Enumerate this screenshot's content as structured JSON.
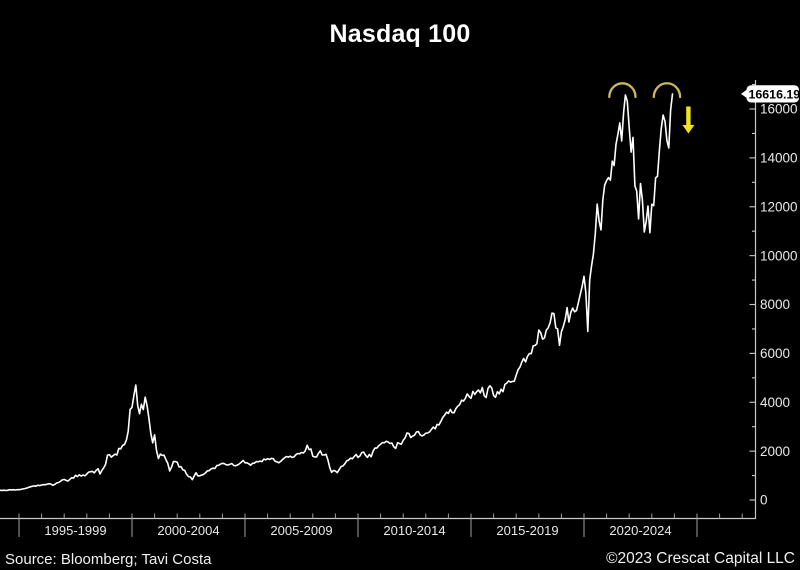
{
  "title": "Nasdaq 100",
  "footer": {
    "source": "Source: Bloomberg; Tavi Costa",
    "copyright": "©2023 Crescat Capital LLC"
  },
  "colors": {
    "background": "#000000",
    "price_line": "#ffffff",
    "axis": "#c8c8c8",
    "tick": "#9f9f9f",
    "tick_label": "#e8e8e8",
    "annotation_arc": "#c9b85e",
    "annotation_arrow": "#f2e41c",
    "tag_bg": "#ffffff",
    "tag_text": "#000000"
  },
  "chart_data": {
    "type": "line",
    "title": "Nasdaq 100",
    "xlabel": "",
    "ylabel": "",
    "legend": [],
    "grid": false,
    "axis_position": {
      "y_axis": "right",
      "x_axis": "bottom"
    },
    "x_group_labels": [
      "1995-1999",
      "2000-2004",
      "2005-2009",
      "2010-2014",
      "2015-2019",
      "2020-2024"
    ],
    "x_group_start_years": [
      1995,
      2000,
      2005,
      2010,
      2015,
      2020
    ],
    "x_axis_year_range": [
      1994.17,
      2027.5
    ],
    "yticks": [
      0,
      2000,
      4000,
      6000,
      8000,
      10000,
      12000,
      14000,
      16000
    ],
    "y_minor_tick_step": 1000,
    "ylim": [
      0,
      17200
    ],
    "last_price": "16616.19",
    "series": [
      {
        "name": "Nasdaq 100 Index",
        "start_year": 1994.1667,
        "points_per_year": 12,
        "values": [
          398,
          394,
          400,
          388,
          396,
          420,
          412,
          422,
          408,
          420,
          420,
          435,
          450,
          468,
          488,
          512,
          540,
          560,
          578,
          565,
          605,
          590,
          612,
          630,
          620,
          652,
          668,
          645,
          600,
          638,
          695,
          718,
          762,
          821,
          838,
          806,
          775,
          848,
          912,
          895,
          1010,
          958,
          1030,
          980,
          1025,
          990,
          1060,
          1142,
          1158,
          1172,
          1108,
          1215,
          1280,
          1062,
          1212,
          1320,
          1460,
          1836,
          1855,
          1752,
          1822,
          1875,
          1842,
          2110,
          2090,
          2234,
          2272,
          2452,
          2810,
          3707,
          3790,
          4280,
          4704,
          3862,
          3530,
          3915,
          3700,
          4206,
          3850,
          3320,
          2730,
          2341,
          2670,
          2034,
          1698,
          1880,
          1830,
          1832,
          1654,
          1498,
          1192,
          1352,
          1570,
          1577,
          1548,
          1352,
          1368,
          1232,
          1212,
          1052,
          958,
          942,
          832,
          982,
          1114,
          984,
          992,
          1018,
          1048,
          1112,
          1190,
          1202,
          1272,
          1302,
          1290,
          1412,
          1420,
          1468,
          1502,
          1484,
          1442,
          1432,
          1462,
          1492,
          1412,
          1402,
          1434,
          1482,
          1542,
          1621,
          1522,
          1522,
          1482,
          1422,
          1502,
          1512,
          1572,
          1562,
          1592,
          1572,
          1672,
          1645,
          1692,
          1662,
          1702,
          1692,
          1582,
          1562,
          1522,
          1582,
          1662,
          1722,
          1782,
          1757,
          1792,
          1742,
          1762,
          1852,
          1902,
          1892,
          1942,
          1922,
          2012,
          2238,
          2062,
          2085,
          1792,
          1762,
          1762,
          1912,
          2012,
          1842,
          1842,
          1872,
          1642,
          1322,
          1132,
          1212,
          1182,
          1122,
          1242,
          1372,
          1392,
          1482,
          1602,
          1632,
          1712,
          1692,
          1782,
          1860,
          1742,
          1802,
          1942,
          1962,
          1832,
          1742,
          1862,
          1772,
          2002,
          2122,
          2122,
          2218,
          2282,
          2352,
          2342,
          2402,
          2372,
          2312,
          2332,
          2172,
          2112,
          2342,
          2312,
          2278,
          2442,
          2542,
          2742,
          2722,
          2552,
          2615,
          2652,
          2782,
          2802,
          2662,
          2622,
          2660,
          2732,
          2742,
          2792,
          2892,
          2982,
          2912,
          3092,
          3072,
          3222,
          3382,
          3472,
          3592,
          3542,
          3702,
          3572,
          3572,
          3742,
          3842,
          3902,
          4082,
          4052,
          4162,
          4342,
          4236,
          4162,
          4442,
          4322,
          4432,
          4502,
          4382,
          4602,
          4272,
          4192,
          4562,
          4672,
          4593,
          4282,
          4202,
          4432,
          4342,
          4532,
          4432,
          4732,
          4782,
          4872,
          4822,
          4852,
          4863,
          5112,
          5332,
          5442,
          5652,
          5792,
          5652,
          5882,
          5992,
          5992,
          6312,
          6322,
          6396,
          6952,
          6852,
          6582,
          6632,
          6952,
          7042,
          7252,
          7642,
          7632,
          7042,
          7002,
          6330,
          6882,
          7102,
          7382,
          7872,
          7282,
          7672,
          7852,
          7702,
          7752,
          8082,
          8402,
          8733,
          9152,
          8462,
          6900,
          9002,
          9562,
          10062,
          10902,
          12110,
          11418,
          11052,
          12268,
          12888,
          13070,
          13192,
          13092,
          13862,
          13686,
          14554,
          14960,
          15432,
          14690,
          15852,
          16573,
          16320,
          15240,
          14238,
          14838,
          12855,
          12642,
          11504,
          12948,
          12272,
          10971,
          11406,
          12030,
          10940,
          12100,
          12042,
          13181,
          13245,
          14254,
          15180,
          15750,
          15500,
          14715,
          14410,
          15950,
          16616
        ]
      }
    ],
    "annotations": [
      {
        "type": "peak-cap",
        "x_year": 2021.7,
        "apex_value": 17050,
        "rx_years": 0.58,
        "ry_value": 560
      },
      {
        "type": "peak-cap",
        "x_year": 2023.67,
        "apex_value": 17050,
        "rx_years": 0.58,
        "ry_value": 560
      },
      {
        "type": "down-arrow",
        "x_year": 2024.62,
        "from_value": 16100,
        "to_value": 15000
      }
    ]
  }
}
